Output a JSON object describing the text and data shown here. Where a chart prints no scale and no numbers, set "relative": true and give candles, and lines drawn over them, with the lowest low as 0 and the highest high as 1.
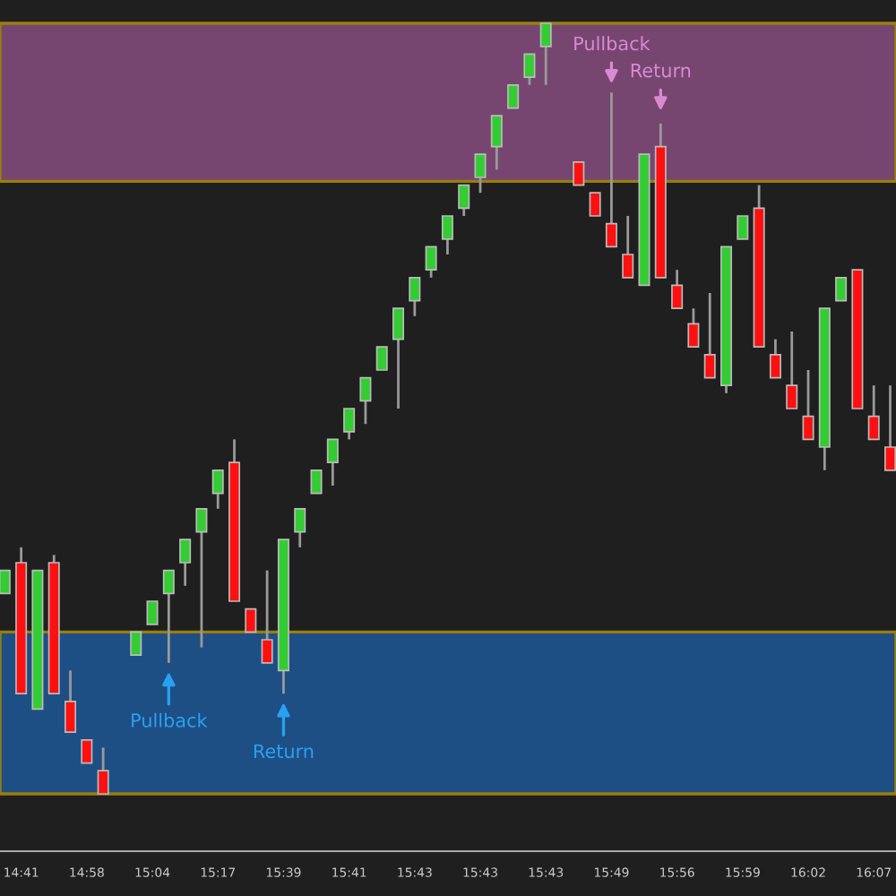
{
  "chart_data": {
    "type": "candlestick",
    "relative": true,
    "categories": [
      null,
      "14:41",
      null,
      null,
      null,
      "14:58",
      null,
      null,
      null,
      "15:04",
      null,
      null,
      null,
      "15:17",
      null,
      null,
      null,
      "15:39",
      null,
      null,
      null,
      "15:41",
      null,
      null,
      null,
      "15:43",
      null,
      null,
      null,
      "15:43",
      null,
      null,
      null,
      "15:43",
      null,
      null,
      null,
      "15:49",
      null,
      null,
      null,
      "15:56",
      null,
      null,
      null,
      "15:59",
      null,
      null,
      null,
      "16:02",
      null,
      null,
      null,
      "16:07",
      null
    ],
    "ohlc": [
      [
        0.26,
        0.29,
        0.26,
        0.29
      ],
      [
        0.3,
        0.32,
        0.13,
        0.13
      ],
      [
        0.11,
        0.29,
        0.11,
        0.29
      ],
      [
        0.3,
        0.31,
        0.13,
        0.13
      ],
      [
        0.12,
        0.16,
        0.08,
        0.08
      ],
      [
        0.07,
        0.07,
        0.04,
        0.04
      ],
      [
        0.03,
        0.06,
        0,
        0
      ],
      null,
      [
        0.18,
        0.21,
        0.18,
        0.21
      ],
      [
        0.22,
        0.25,
        0.22,
        0.25
      ],
      [
        0.26,
        0.29,
        0.17,
        0.29
      ],
      [
        0.3,
        0.33,
        0.27,
        0.33
      ],
      [
        0.34,
        0.37,
        0.19,
        0.37
      ],
      [
        0.39,
        0.42,
        0.37,
        0.42
      ],
      [
        0.43,
        0.46,
        0.25,
        0.25
      ],
      [
        0.24,
        0.24,
        0.21,
        0.21
      ],
      [
        0.2,
        0.29,
        0.17,
        0.17
      ],
      [
        0.16,
        0.33,
        0.13,
        0.33
      ],
      [
        0.34,
        0.37,
        0.32,
        0.37
      ],
      [
        0.39,
        0.42,
        0.39,
        0.42
      ],
      [
        0.43,
        0.46,
        0.4,
        0.46
      ],
      [
        0.47,
        0.5,
        0.46,
        0.5
      ],
      [
        0.51,
        0.54,
        0.48,
        0.54
      ],
      [
        0.55,
        0.58,
        0.55,
        0.58
      ],
      [
        0.59,
        0.63,
        0.5,
        0.63
      ],
      [
        0.64,
        0.67,
        0.62,
        0.67
      ],
      [
        0.68,
        0.71,
        0.67,
        0.71
      ],
      [
        0.72,
        0.75,
        0.7,
        0.75
      ],
      [
        0.76,
        0.79,
        0.75,
        0.79
      ],
      [
        0.8,
        0.83,
        0.78,
        0.83
      ],
      [
        0.84,
        0.88,
        0.81,
        0.88
      ],
      [
        0.89,
        0.92,
        0.89,
        0.92
      ],
      [
        0.93,
        0.96,
        0.92,
        0.96
      ],
      [
        0.97,
        1,
        0.92,
        1
      ],
      null,
      [
        0.82,
        0.82,
        0.79,
        0.79
      ],
      [
        0.78,
        0.78,
        0.75,
        0.75
      ],
      [
        0.74,
        0.91,
        0.71,
        0.71
      ],
      [
        0.7,
        0.75,
        0.67,
        0.67
      ],
      [
        0.66,
        0.83,
        0.66,
        0.83
      ],
      [
        0.84,
        0.87,
        0.67,
        0.67
      ],
      [
        0.66,
        0.68,
        0.63,
        0.63
      ],
      [
        0.61,
        0.63,
        0.58,
        0.58
      ],
      [
        0.57,
        0.65,
        0.54,
        0.54
      ],
      [
        0.53,
        0.71,
        0.52,
        0.71
      ],
      [
        0.72,
        0.75,
        0.72,
        0.75
      ],
      [
        0.76,
        0.79,
        0.58,
        0.58
      ],
      [
        0.57,
        0.59,
        0.54,
        0.54
      ],
      [
        0.53,
        0.6,
        0.5,
        0.5
      ],
      [
        0.49,
        0.55,
        0.46,
        0.46
      ],
      [
        0.45,
        0.63,
        0.42,
        0.63
      ],
      [
        0.64,
        0.67,
        0.64,
        0.67
      ],
      [
        0.68,
        0.68,
        0.5,
        0.5
      ],
      [
        0.49,
        0.53,
        0.46,
        0.46
      ],
      [
        0.45,
        0.53,
        0.42,
        0.42
      ]
    ],
    "bands": [
      {
        "axis": "y",
        "from": 0.795,
        "to": 1,
        "color": "#b060a8"
      },
      {
        "axis": "y",
        "from": 0,
        "to": 0.21,
        "color": "#1c70c8"
      }
    ],
    "annotations": [
      "Pullback",
      "Return",
      "Pullback",
      "Return"
    ]
  }
}
